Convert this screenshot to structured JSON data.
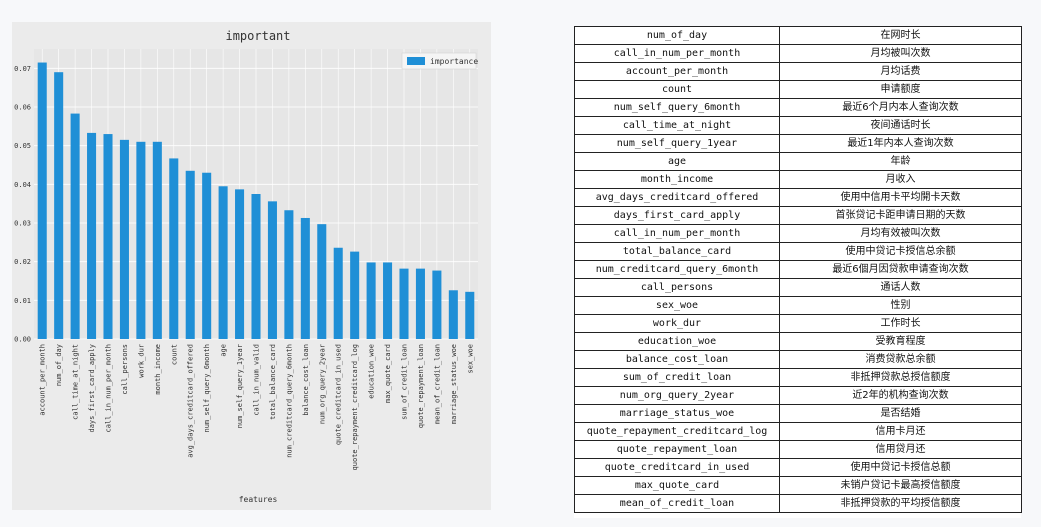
{
  "chart_data": {
    "type": "bar",
    "title": "important",
    "xlabel": "features",
    "ylabel": "",
    "ylim": [
      0,
      0.075
    ],
    "yticks": [
      "0.00",
      "0.01",
      "0.02",
      "0.03",
      "0.04",
      "0.05",
      "0.06",
      "0.07"
    ],
    "legend_position": "top-right",
    "grid": true,
    "bar_color": "#1f8fd6",
    "categories": [
      "account_per_month",
      "num_of_day",
      "call_time_at_night",
      "days_first_card_apply",
      "call_in_num_per_month",
      "call_persons",
      "work_dur",
      "month_income",
      "count",
      "avg_days_creditcard_offered",
      "num_self_query_6month",
      "age",
      "num_self_query_1year",
      "call_in_num_valid",
      "total_balance_card",
      "num_creditcard_query_6month",
      "balance_cost_loan",
      "num_org_query_2year",
      "quote_creditcard_in_used",
      "quote_repayment_creditcard_log",
      "education_woe",
      "max_quote_card",
      "sum_of_credit_loan",
      "quote_repayment_loan",
      "mean_of_credit_loan",
      "marriage_status_woe",
      "sex_woe"
    ],
    "series": [
      {
        "name": "importance",
        "values": [
          0.0715,
          0.069,
          0.0583,
          0.0533,
          0.053,
          0.0515,
          0.051,
          0.051,
          0.0467,
          0.0435,
          0.043,
          0.0395,
          0.0387,
          0.0375,
          0.0356,
          0.0333,
          0.0313,
          0.0297,
          0.0236,
          0.0226,
          0.0198,
          0.0198,
          0.0182,
          0.0182,
          0.0177,
          0.0126,
          0.0122
        ]
      }
    ]
  },
  "table": {
    "rows": [
      {
        "name": "num_of_day",
        "desc": "在网时长"
      },
      {
        "name": "call_in_num_per_month",
        "desc": "月均被叫次数"
      },
      {
        "name": "account_per_month",
        "desc": "月均话费"
      },
      {
        "name": "count",
        "desc": "申请额度"
      },
      {
        "name": "num_self_query_6month",
        "desc": "最近6个月内本人查询次数"
      },
      {
        "name": "call_time_at_night",
        "desc": "夜间通话时长"
      },
      {
        "name": "num_self_query_1year",
        "desc": "最近1年内本人查询次数"
      },
      {
        "name": "age",
        "desc": "年龄"
      },
      {
        "name": "month_income",
        "desc": "月收入"
      },
      {
        "name": "avg_days_creditcard_offered",
        "desc": "使用中信用卡平均開卡天数"
      },
      {
        "name": "days_first_card_apply",
        "desc": "首张贷记卡距申请日期的天数"
      },
      {
        "name": "call_in_num_per_month",
        "desc": "月均有效被叫次数"
      },
      {
        "name": "total_balance_card",
        "desc": "使用中贷记卡授信总余额"
      },
      {
        "name": "num_creditcard_query_6month",
        "desc": "最近6個月因贷款申请查询次数"
      },
      {
        "name": "call_persons",
        "desc": "通话人数"
      },
      {
        "name": "sex_woe",
        "desc": "性别"
      },
      {
        "name": "work_dur",
        "desc": "工作时长"
      },
      {
        "name": "education_woe",
        "desc": "受教育程度"
      },
      {
        "name": "balance_cost_loan",
        "desc": "消费贷款总余额"
      },
      {
        "name": "sum_of_credit_loan",
        "desc": "非抵押贷款总授信额度"
      },
      {
        "name": "num_org_query_2year",
        "desc": "近2年的机构查询次数"
      },
      {
        "name": "marriage_status_woe",
        "desc": "是否结婚"
      },
      {
        "name": "quote_repayment_creditcard_log",
        "desc": "信用卡月还"
      },
      {
        "name": "quote_repayment_loan",
        "desc": "信用贷月还"
      },
      {
        "name": "quote_creditcard_in_used",
        "desc": "使用中贷记卡授信总额"
      },
      {
        "name": "max_quote_card",
        "desc": "未销户贷记卡最高授信额度"
      },
      {
        "name": "mean_of_credit_loan",
        "desc": "非抵押贷款的平均授信额度"
      }
    ]
  }
}
